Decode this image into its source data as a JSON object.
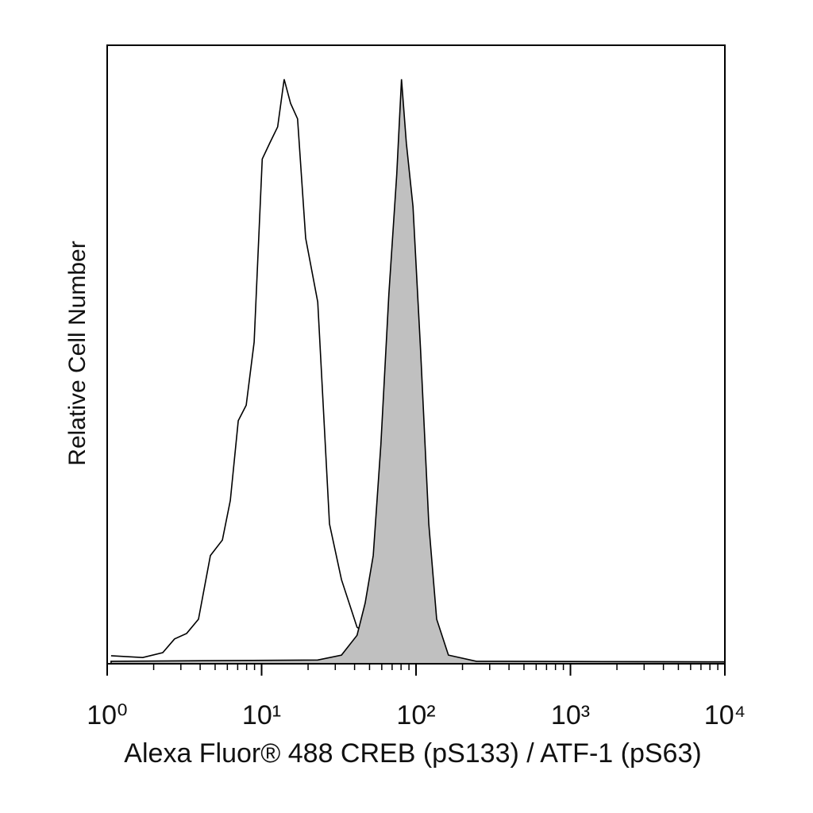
{
  "chart_data": {
    "type": "histogram-overlay",
    "xlabel": "Alexa Fluor® 488 CREB (pS133) / ATF-1 (pS63)",
    "ylabel": "Relative Cell Number",
    "xscale": "log",
    "xlim": [
      1,
      10000
    ],
    "ylim": [
      0,
      100
    ],
    "xticks": [
      {
        "value": 1,
        "label": "10⁰"
      },
      {
        "value": 10,
        "label": "10¹"
      },
      {
        "value": 100,
        "label": "10²"
      },
      {
        "value": 1000,
        "label": "10³"
      },
      {
        "value": 10000,
        "label": "10⁴"
      }
    ],
    "xminorticks": [
      2,
      3,
      4,
      5,
      6,
      7,
      8,
      9,
      20,
      30,
      40,
      50,
      60,
      70,
      80,
      90,
      200,
      300,
      400,
      500,
      600,
      700,
      800,
      900,
      2000,
      3000,
      4000,
      5000,
      6000,
      7000,
      8000,
      9000
    ],
    "series": [
      {
        "color": "#000000",
        "fill": "none",
        "x": [
          1.06,
          1.7,
          2.29,
          2.73,
          3.27,
          3.9,
          4.66,
          5.57,
          6.27,
          7.06,
          7.95,
          8.95,
          10.1,
          11.3,
          12.7,
          14.0,
          15.4,
          17.1,
          19.3,
          23.1,
          27.5,
          32.9,
          41.5,
          52.8,
          66.7,
          95.6,
          246,
          10000
        ],
        "values": [
          1.3,
          1.0,
          1.8,
          4.0,
          4.9,
          7.2,
          17.5,
          20,
          26.4,
          39.3,
          41.8,
          52,
          81.6,
          84.2,
          86.8,
          94.5,
          90.6,
          88.1,
          68.8,
          58.5,
          22.6,
          13.6,
          5.9,
          4.0,
          2.1,
          0.8,
          0.4,
          0.3
        ]
      },
      {
        "color": "#000000",
        "fill": "#c0c0c0",
        "x": [
          1.06,
          23.1,
          32.9,
          41.5,
          46.8,
          52.8,
          59.2,
          66.7,
          75.0,
          80.5,
          86.6,
          95.6,
          107,
          121,
          136,
          162,
          246,
          10000
        ],
        "values": [
          0.4,
          0.6,
          1.4,
          4.6,
          9.8,
          17.5,
          35.4,
          59.8,
          79.1,
          94.5,
          84.2,
          73.9,
          50.8,
          22.6,
          7.2,
          1.4,
          0.4,
          0.3
        ]
      }
    ]
  }
}
